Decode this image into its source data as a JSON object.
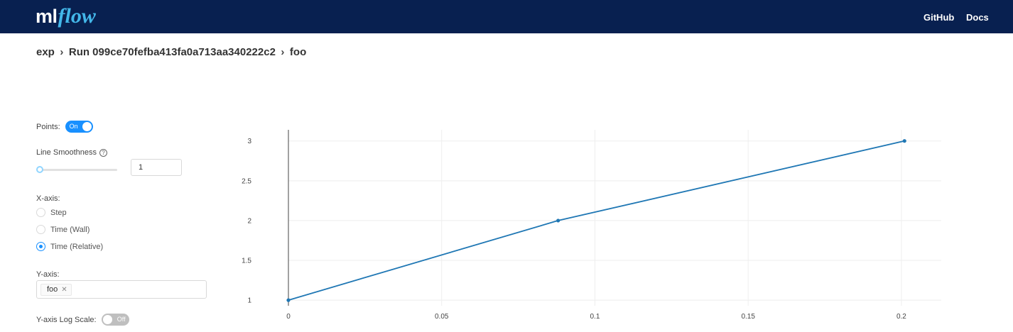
{
  "header": {
    "logo_ml": "ml",
    "logo_flow": "flow",
    "nav": [
      {
        "label": "GitHub"
      },
      {
        "label": "Docs"
      }
    ]
  },
  "breadcrumb": {
    "items": [
      "exp",
      "Run 099ce70fefba413fa0a713aa340222c2",
      "foo"
    ]
  },
  "controls": {
    "points_label": "Points:",
    "points_toggle": "On",
    "smoothness_label": "Line Smoothness",
    "smoothness_help_icon": "question-circle-icon",
    "smoothness_value": "1",
    "smoothness_level": 0,
    "xaxis_label": "X-axis:",
    "xaxis_options": [
      "Step",
      "Time (Wall)",
      "Time (Relative)"
    ],
    "xaxis_selected": "Time (Relative)",
    "yaxis_label": "Y-axis:",
    "yaxis_tags": [
      "foo"
    ],
    "log_scale_label": "Y-axis Log Scale:",
    "log_scale_toggle": "Off"
  },
  "colors": {
    "header_bg": "#082050",
    "logo_accent": "#43b7e9",
    "primary": "#1890ff",
    "line": "#1f77b4"
  },
  "chart_data": {
    "type": "line",
    "series": [
      {
        "x": [
          0,
          0.088,
          0.201
        ],
        "y": [
          1,
          2,
          3
        ]
      }
    ],
    "xticks": [
      0,
      0.05,
      0.1,
      0.15,
      0.2
    ],
    "yticks": [
      1,
      1.5,
      2,
      2.5,
      3
    ],
    "xlim": [
      0,
      0.213
    ],
    "ylim": [
      0.93,
      3.14
    ],
    "grid": true,
    "markers": true
  }
}
